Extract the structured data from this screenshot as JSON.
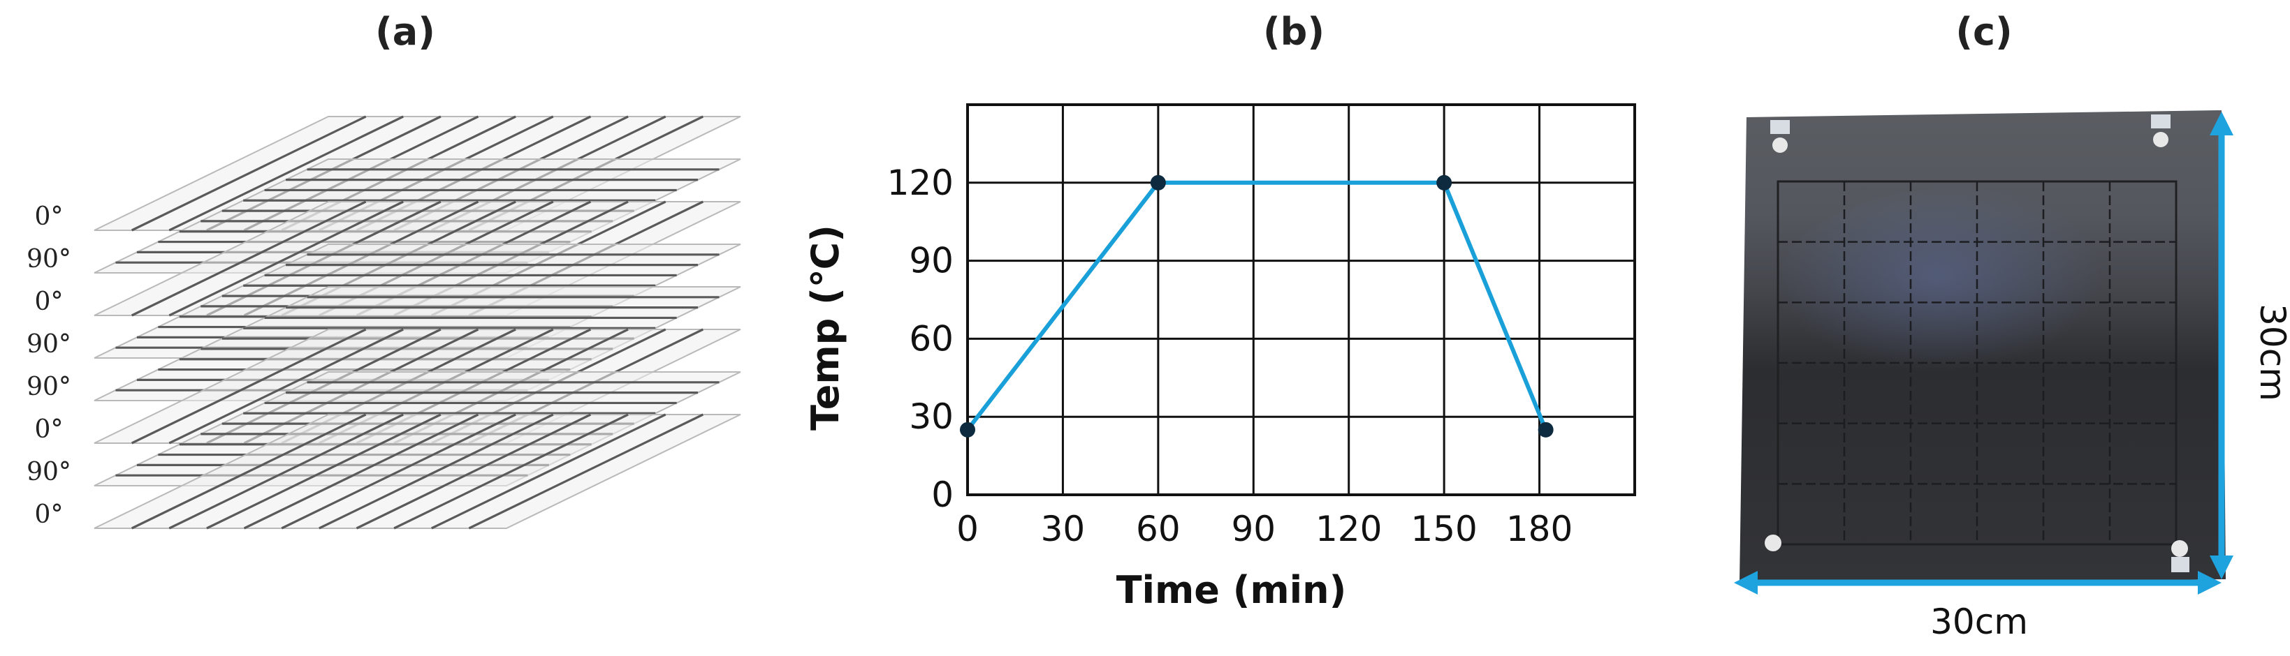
{
  "panels": {
    "a": {
      "label": "(a)"
    },
    "b": {
      "label": "(b)"
    },
    "c": {
      "label": "(c)"
    }
  },
  "layup": {
    "plies": [
      "0°",
      "90°",
      "0°",
      "90°",
      "90°",
      "0°",
      "90°",
      "0°"
    ]
  },
  "chart_data": {
    "type": "line",
    "title": "",
    "xlabel": "Time (min)",
    "ylabel": "Temp (℃)",
    "x": [
      0,
      60,
      150,
      182
    ],
    "series": [
      {
        "values": [
          25,
          120,
          120,
          25
        ]
      }
    ],
    "xticks": [
      "0",
      "30",
      "60",
      "90",
      "120",
      "150",
      "180"
    ],
    "yticks": [
      "0",
      "30",
      "60",
      "90",
      "120"
    ],
    "xlim": [
      0,
      210
    ],
    "ylim": [
      0,
      150
    ],
    "grid": true,
    "line_color": "#1aa0d8",
    "marker_color": "#0d2a3f"
  },
  "specimen": {
    "width_label": "30cm",
    "height_label": "30cm",
    "arrow_color": "#1ea3df",
    "panel_color": "#2d2f33"
  }
}
